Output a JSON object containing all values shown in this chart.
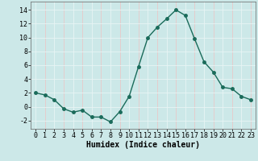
{
  "x": [
    0,
    1,
    2,
    3,
    4,
    5,
    6,
    7,
    8,
    9,
    10,
    11,
    12,
    13,
    14,
    15,
    16,
    17,
    18,
    19,
    20,
    21,
    22,
    23
  ],
  "y": [
    2.0,
    1.7,
    1.0,
    -0.3,
    -0.8,
    -0.5,
    -1.5,
    -1.5,
    -2.2,
    -0.7,
    1.5,
    5.8,
    10.0,
    11.5,
    12.7,
    14.0,
    13.2,
    9.8,
    6.5,
    5.0,
    2.8,
    2.6,
    1.5,
    1.0
  ],
  "line_color": "#1a6b5a",
  "marker": "o",
  "markersize": 2.5,
  "linewidth": 1.0,
  "xlabel": "Humidex (Indice chaleur)",
  "xlabel_fontsize": 7,
  "xlim": [
    -0.5,
    23.5
  ],
  "ylim": [
    -3.2,
    15.2
  ],
  "yticks": [
    -2,
    0,
    2,
    4,
    6,
    8,
    10,
    12,
    14
  ],
  "xticks": [
    0,
    1,
    2,
    3,
    4,
    5,
    6,
    7,
    8,
    9,
    10,
    11,
    12,
    13,
    14,
    15,
    16,
    17,
    18,
    19,
    20,
    21,
    22,
    23
  ],
  "background_color": "#cce8e8",
  "grid_white_color": "#e8f5f5",
  "grid_pink_color": "#e8c8c8",
  "tick_fontsize": 6.0,
  "font_family": "monospace"
}
